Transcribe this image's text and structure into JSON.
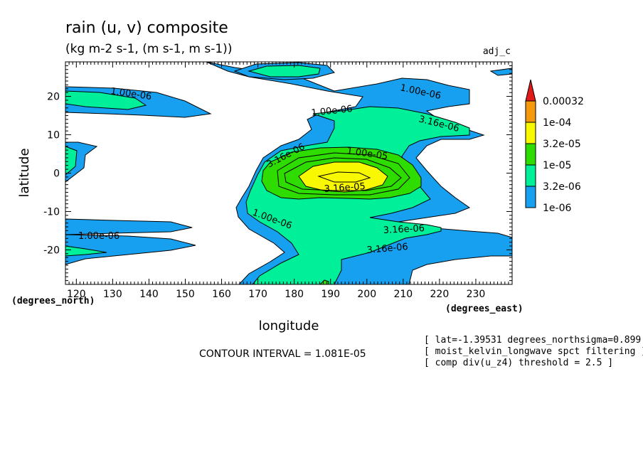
{
  "chart_data": {
    "type": "heatmap",
    "title": "rain (u, v) composite",
    "subtitle": "(kg m-2 s-1, (m s-1, m s-1))",
    "dataset_label": "adj_c",
    "xlabel": "longitude",
    "ylabel": "latitude",
    "x_unit": "(degrees_east)",
    "y_unit": "(degrees_north)",
    "xlim": [
      117,
      240
    ],
    "ylim": [
      -29,
      29
    ],
    "x_ticks": [
      120,
      130,
      140,
      150,
      160,
      170,
      180,
      190,
      200,
      210,
      220,
      230
    ],
    "y_ticks": [
      20,
      10,
      0,
      -10,
      -20
    ],
    "legend": {
      "placement": "right",
      "levels": [
        "0.00032",
        "1e-04",
        "3.2e-05",
        "1e-05",
        "3.2e-06",
        "1e-06"
      ],
      "colors": [
        "#e21a1a",
        "#f59a0c",
        "#f8f800",
        "#2edc00",
        "#00f09a",
        "#18a0f0"
      ]
    },
    "contour_labels": [
      "1.00e-06",
      "1.00e-06",
      "1.00e-06",
      "1.00e-06",
      "3.16e-06",
      "3.16e-06",
      "3.16e-06",
      "3.16e-06",
      "1.00e-05",
      "3.16e-05",
      "1.00e-06"
    ],
    "contour_interval": "CONTOUR INTERVAL = 1.081E-05",
    "notes": [
      "[ lat=-1.39531 degrees_northsigma=0.899",
      "[ moist_kelvin_longwave spct filtering ]",
      "[ comp div(u_z4) threshold = 2.5 ]"
    ]
  }
}
